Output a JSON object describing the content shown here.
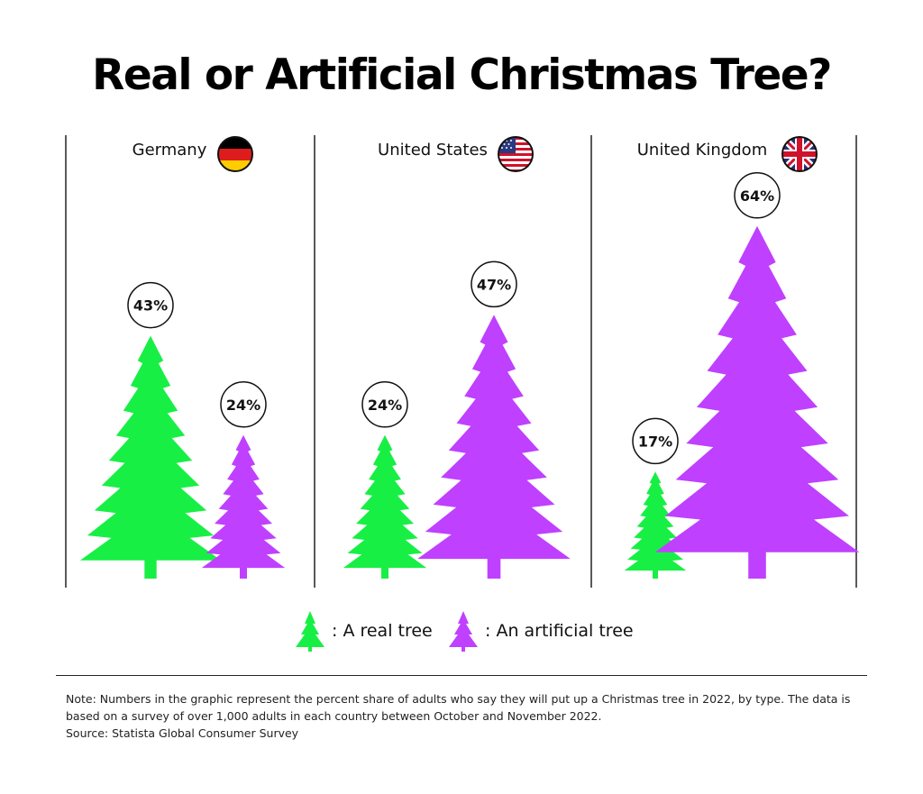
{
  "title": "Real or Artificial Christmas Tree?",
  "colors": {
    "real": "#18ef45",
    "artificial": "#bf40ff"
  },
  "chart_data": {
    "type": "bar",
    "categories": [
      "Germany",
      "United States",
      "United Kingdom"
    ],
    "series": [
      {
        "name": "A real tree",
        "values": [
          43,
          24,
          17
        ],
        "labels": [
          "43%",
          "24%",
          "17%"
        ]
      },
      {
        "name": "An artificial tree",
        "values": [
          24,
          47,
          64
        ],
        "labels": [
          "24%",
          "47%",
          "64%"
        ]
      }
    ],
    "ylim": [
      0,
      64
    ],
    "legend_position": "bottom-center"
  },
  "flags": [
    "germany-flag-icon",
    "usa-flag-icon",
    "uk-flag-icon"
  ],
  "legend": {
    "real_label": ": A real tree",
    "artificial_label": ": An artificial tree"
  },
  "note": {
    "line1": "Note: Numbers in the graphic represent the percent share of adults who say they will put up a Christmas tree in 2022, by type. The data is",
    "line2": "based on a survey of over 1,000 adults in each country between October and November 2022.",
    "source": "Source: Statista Global Consumer Survey"
  }
}
